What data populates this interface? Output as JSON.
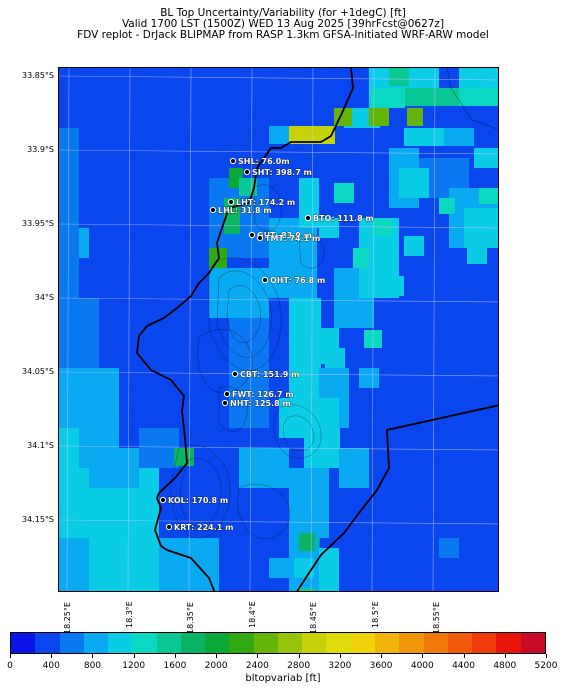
{
  "title": {
    "line1": "BL Top Uncertainty/Variability (for +1degC) [ft]",
    "line2": "Valid 1700 LST (1500Z) WED 13 Aug 2025 [39hrFcst@0627z]",
    "line3": "FDV replot - DrJack BLIPMAP from RASP 1.3km GFSA-Initiated WRF-ARW model"
  },
  "axes": {
    "lat_labels": [
      "33.85°S",
      "33.9°S",
      "33.95°S",
      "34°S",
      "34.05°S",
      "34.1°S",
      "34.15°S"
    ],
    "lon_labels": [
      "18.25°E",
      "18.3°E",
      "18.35°E",
      "18.4°E",
      "18.45°E",
      "18.5°E",
      "18.55°E"
    ]
  },
  "colorbar": {
    "label": "bltopvariab [ft]",
    "ticks": [
      "0",
      "400",
      "800",
      "1200",
      "1600",
      "2000",
      "2400",
      "2800",
      "3200",
      "3600",
      "4000",
      "4400",
      "4800",
      "5200"
    ],
    "colors": [
      "#0a14e8",
      "#0a46ee",
      "#0a78f0",
      "#0aaaf2",
      "#0acce4",
      "#0ad8c0",
      "#0ac896",
      "#0ab464",
      "#0aa836",
      "#32a812",
      "#64b40a",
      "#96c40a",
      "#c8d20a",
      "#e0dc0a",
      "#f0d20a",
      "#f0b40a",
      "#f0960a",
      "#f0780a",
      "#f05a0a",
      "#f03c0a",
      "#e8140a",
      "#c80a28"
    ]
  },
  "stations": [
    {
      "label": "SHL: 76.0m"
    },
    {
      "label": "SHT: 398.7 m"
    },
    {
      "label": "LHT: 174.2 m"
    },
    {
      "label": "LHL: 31.8 m"
    },
    {
      "label": "BTO: 111.8 m"
    },
    {
      "label": "GUT: 83.9 m"
    },
    {
      "label": "TMT: 74.1 m"
    },
    {
      "label": "OHT: 76.8 m"
    },
    {
      "label": "CBT: 151.9 m"
    },
    {
      "label": "FWT: 126.7 m"
    },
    {
      "label": "NHT: 125.8 m"
    },
    {
      "label": "KOL: 170.8 m"
    },
    {
      "label": "KRT: 224.1 m"
    }
  ]
}
